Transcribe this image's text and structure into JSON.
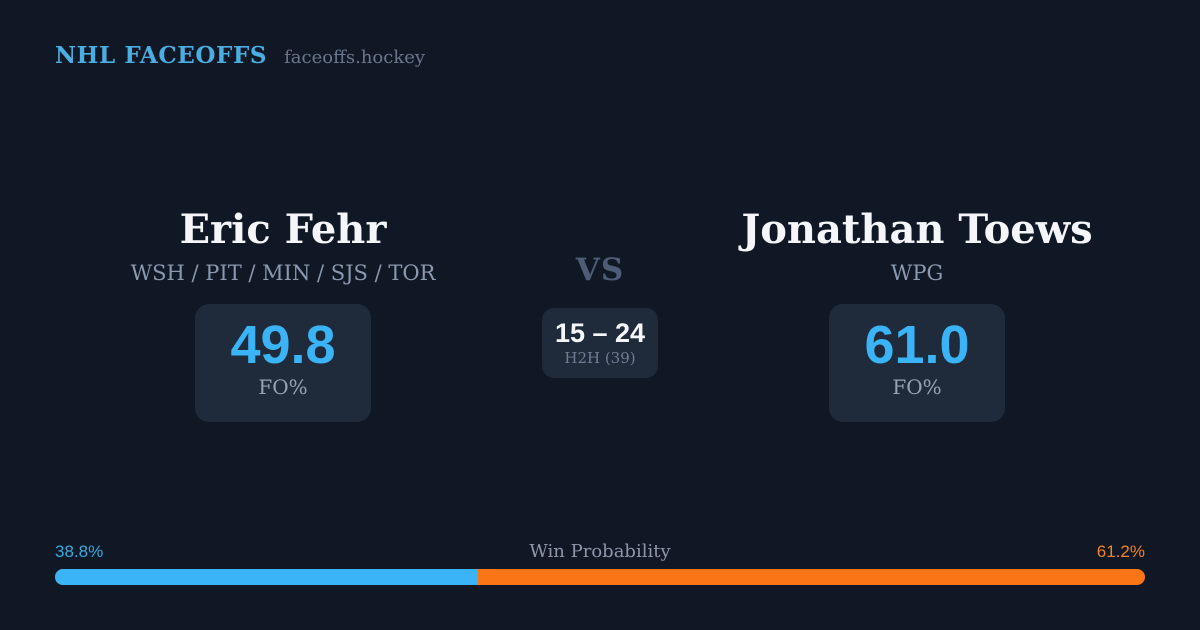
{
  "header": {
    "brand": "NHL FACEOFFS",
    "site": "faceoffs.hockey"
  },
  "matchup": {
    "vs_label": "VS",
    "h2h": {
      "score": "15 – 24",
      "label": "H2H (39)",
      "games": 39,
      "left_wins": 15,
      "right_wins": 24
    },
    "left": {
      "name": "Eric Fehr",
      "teams": "WSH / PIT / MIN / SJS / TOR",
      "stat_value": "49.8",
      "stat_label": "FO%"
    },
    "right": {
      "name": "Jonathan Toews",
      "teams": "WPG",
      "stat_value": "61.0",
      "stat_label": "FO%"
    }
  },
  "win_probability": {
    "title": "Win Probability",
    "left_pct": 38.8,
    "left_label": "38.8%",
    "right_pct": 61.2,
    "right_label": "61.2%"
  },
  "colors": {
    "background": "#101826",
    "card": "#1f2b3b",
    "accent_blue": "#3ab4f6",
    "accent_orange": "#f97516",
    "brand_blue": "#4aaee2"
  },
  "chart_data": {
    "type": "bar",
    "title": "Win Probability",
    "categories": [
      "Eric Fehr",
      "Jonathan Toews"
    ],
    "series": [
      {
        "name": "Win Probability %",
        "values": [
          38.8,
          61.2
        ]
      },
      {
        "name": "FO%",
        "values": [
          49.8,
          61.0
        ]
      },
      {
        "name": "H2H wins",
        "values": [
          15,
          24
        ]
      }
    ],
    "annotations": [
      "H2H (39)"
    ],
    "layout": "single stacked horizontal bar; blue = left player share, orange = right player share; legend off; labels at bar ends"
  }
}
